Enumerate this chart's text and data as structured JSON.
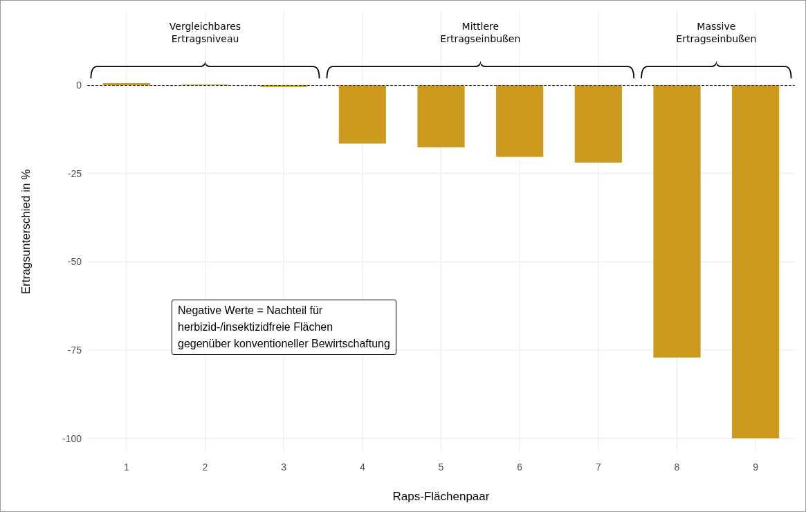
{
  "chart_data": {
    "type": "bar",
    "categories": [
      "1",
      "2",
      "3",
      "4",
      "5",
      "6",
      "7",
      "8",
      "9"
    ],
    "values": [
      0.6,
      0.2,
      -0.5,
      -16.5,
      -17.6,
      -20.3,
      -21.9,
      -77.1,
      -100
    ],
    "color": "#cc9a1e",
    "xlabel": "Raps-Flächenpaar",
    "ylabel": "Ertragsunterschied in %",
    "ylim": [
      -104,
      21
    ],
    "yticks": [
      0,
      -25,
      -50,
      -75,
      -100
    ],
    "grid": true,
    "ref_lines": [
      {
        "axis": "y",
        "value": 0,
        "line_style": "dashed",
        "color": "#333333"
      }
    ],
    "annotations": [
      "Vergleichbares\nErtragsniveau",
      "Mittlere\nErtragseinbußen",
      "Massive\nErtragseinbußen",
      "Negative Werte = Nachteil für\nherbizid-/insektizidfreie Flächen\ngegenüber konventioneller Bewirtschaftung"
    ]
  }
}
